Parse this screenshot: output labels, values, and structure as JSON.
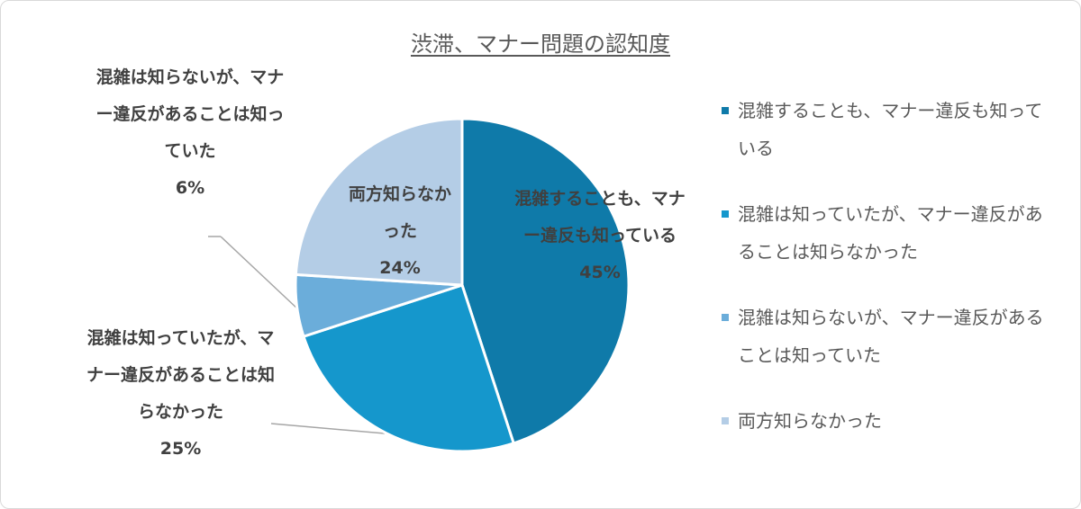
{
  "chart_data": {
    "type": "pie",
    "title": "渋滞、マナー問題の認知度",
    "categories": [
      "混雑することも、マナー違反も知っている",
      "混雑は知っていたが、マナー違反があることは知らなかった",
      "混雑は知らないが、マナー違反があることは知っていた",
      "両方知らなかった"
    ],
    "values": [
      45,
      25,
      6,
      24
    ],
    "value_labels": [
      "45%",
      "25%",
      "6%",
      "24%"
    ],
    "colors": [
      "#0f7aa9",
      "#1597cc",
      "#6badda",
      "#b4cde6"
    ],
    "legend": "right"
  }
}
